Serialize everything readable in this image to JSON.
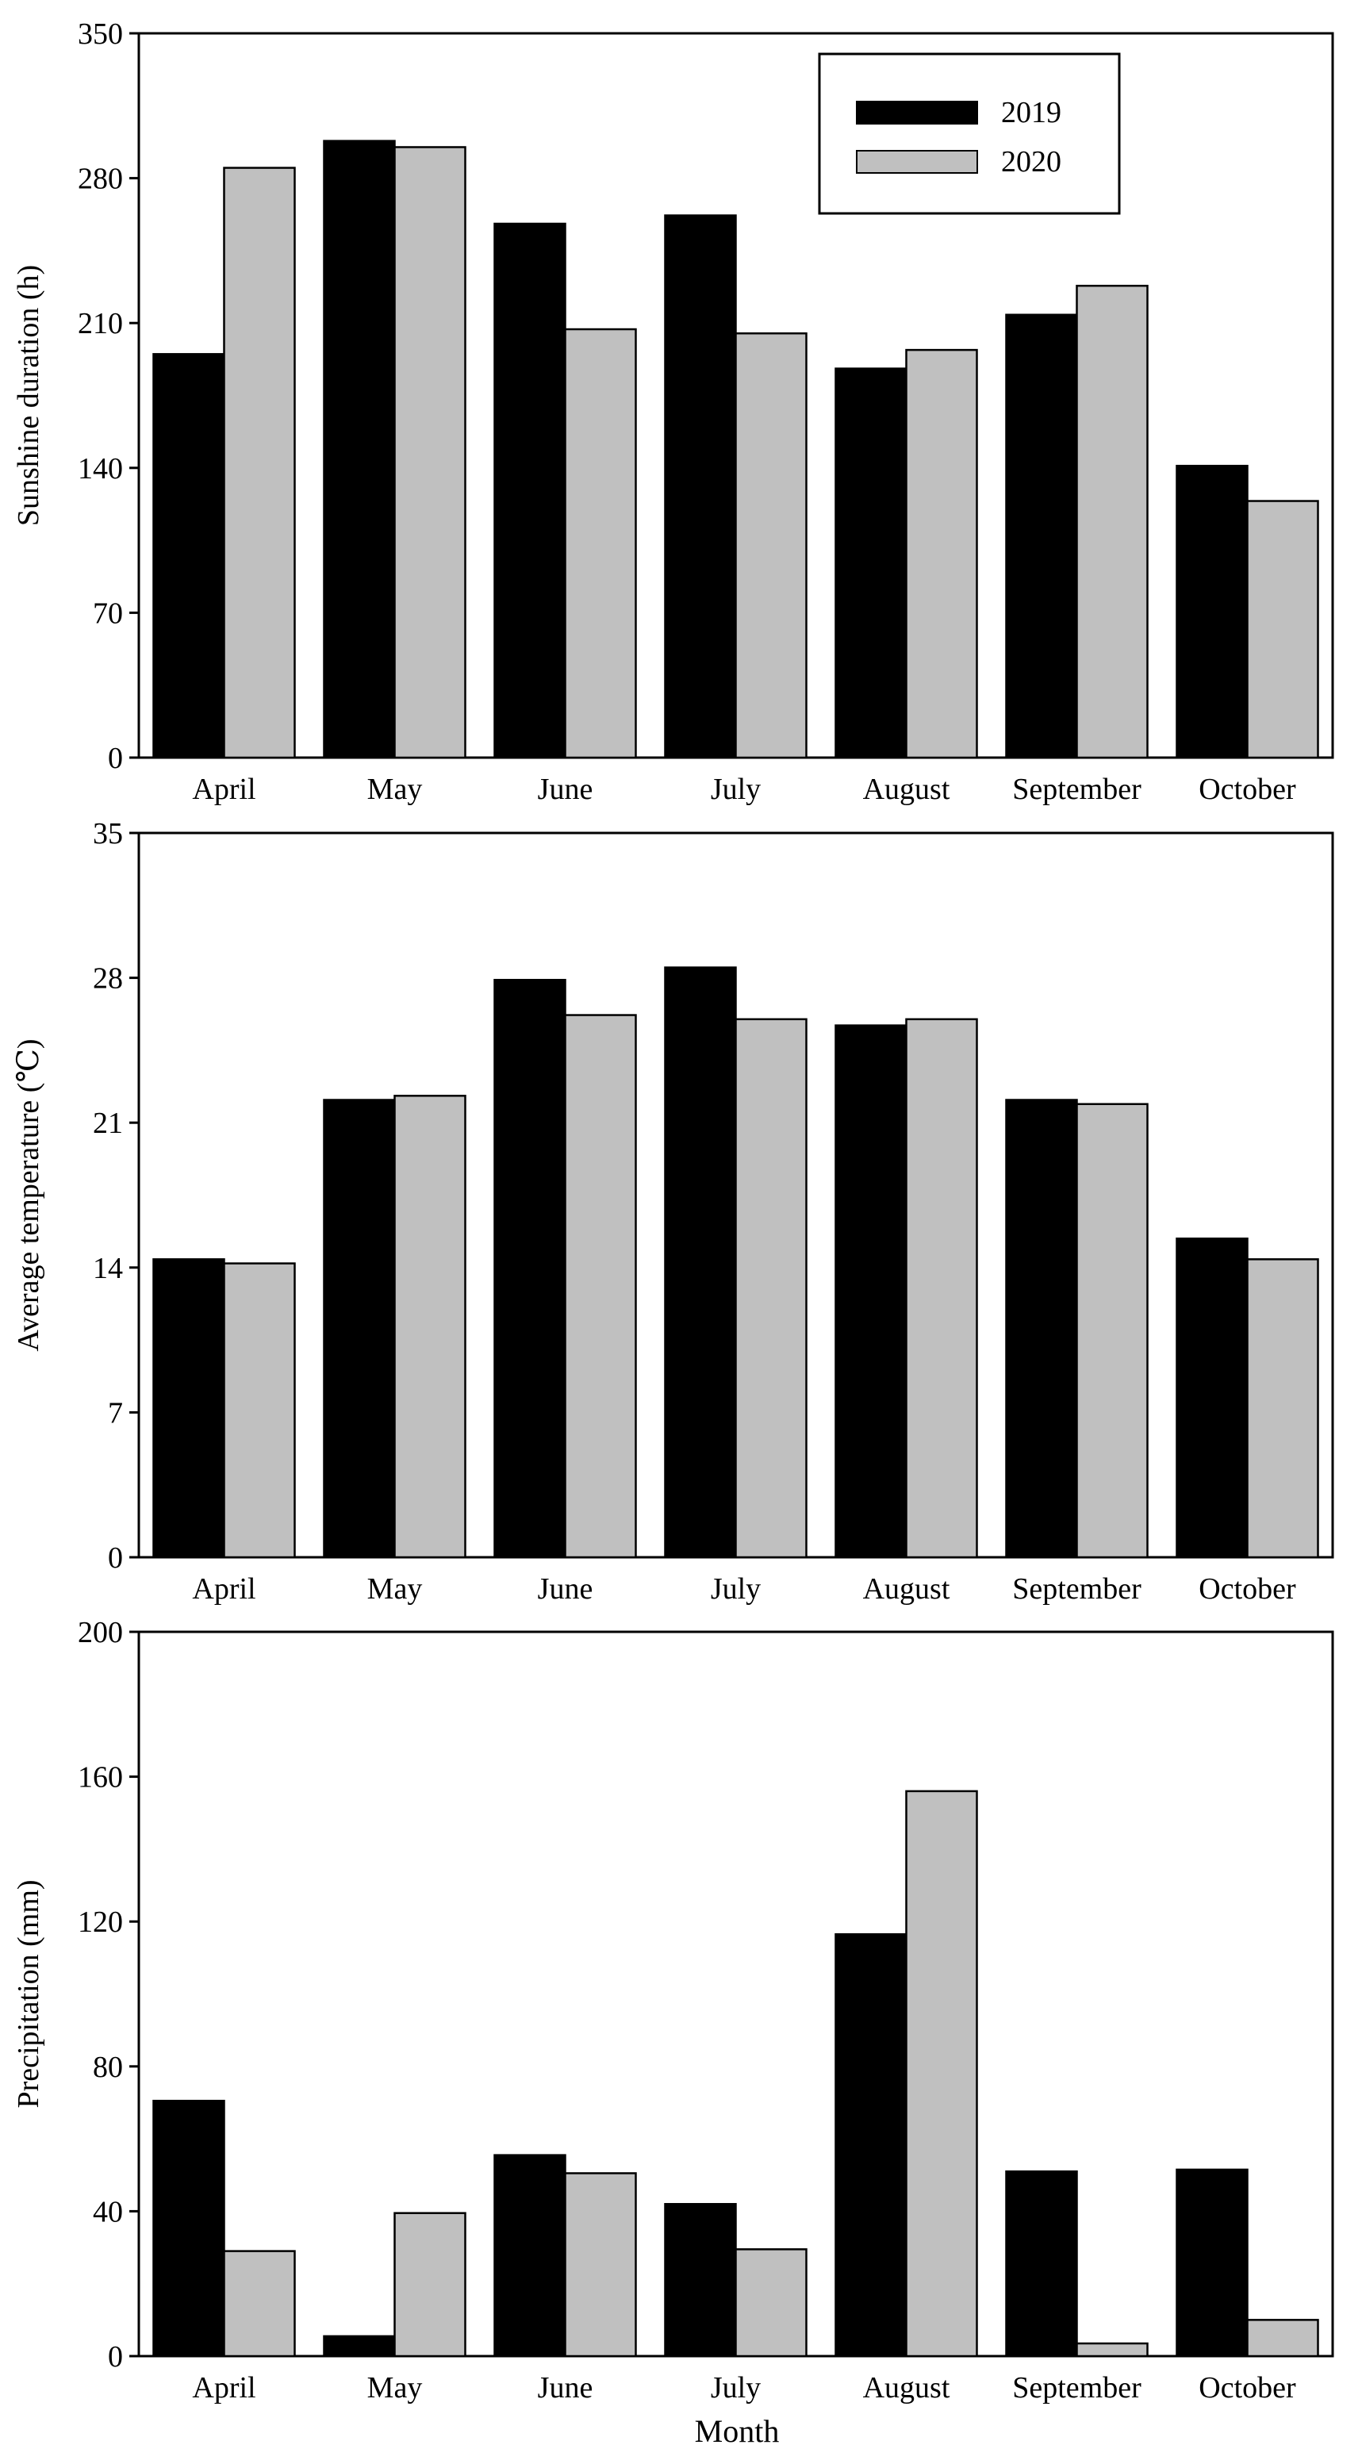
{
  "colors": {
    "series_2019": "#000000",
    "series_2020": "#c0c0c0",
    "axis": "#000000",
    "background": "#ffffff"
  },
  "legend": {
    "placement": "top-right (top panel)",
    "entries": [
      "2019",
      "2020"
    ]
  },
  "common_xlabel": "Month",
  "chart_data": [
    {
      "type": "bar",
      "title": "",
      "xlabel": "",
      "ylabel": "Sunshine duration (h)",
      "ylim": [
        0,
        350
      ],
      "yticks": [
        "0",
        "70",
        "140",
        "210",
        "280",
        "350"
      ],
      "categories": [
        "April",
        "May",
        "June",
        "July",
        "August",
        "September",
        "October"
      ],
      "series": [
        {
          "name": "2019",
          "values": [
            195,
            298,
            258,
            262,
            188,
            214,
            141
          ]
        },
        {
          "name": "2020",
          "values": [
            285,
            295,
            207,
            205,
            197,
            228,
            124
          ]
        }
      ],
      "grid": false,
      "legend": "top-right"
    },
    {
      "type": "bar",
      "title": "",
      "xlabel": "",
      "ylabel": "Average temperature (℃)",
      "ylim": [
        0,
        35
      ],
      "yticks": [
        "0",
        "7",
        "14",
        "21",
        "28",
        "35"
      ],
      "categories": [
        "April",
        "May",
        "June",
        "July",
        "August",
        "September",
        "October"
      ],
      "series": [
        {
          "name": "2019",
          "values": [
            14.4,
            22.1,
            27.9,
            28.5,
            25.7,
            22.1,
            15.4
          ]
        },
        {
          "name": "2020",
          "values": [
            14.2,
            22.3,
            26.2,
            26.0,
            26.0,
            21.9,
            14.4
          ]
        }
      ],
      "grid": false,
      "legend": "none"
    },
    {
      "type": "bar",
      "title": "",
      "xlabel": "Month",
      "ylabel": "Precipitation (mm)",
      "ylim": [
        0,
        200
      ],
      "yticks": [
        "0",
        "40",
        "80",
        "120",
        "160",
        "200"
      ],
      "categories": [
        "April",
        "May",
        "June",
        "July",
        "August",
        "September",
        "October"
      ],
      "series": [
        {
          "name": "2019",
          "values": [
            70.5,
            5.5,
            55.5,
            42,
            116.5,
            51,
            51.5
          ]
        },
        {
          "name": "2020",
          "values": [
            29,
            39.5,
            50.5,
            29.5,
            156,
            3.5,
            10
          ]
        }
      ],
      "grid": false,
      "legend": "none"
    }
  ]
}
